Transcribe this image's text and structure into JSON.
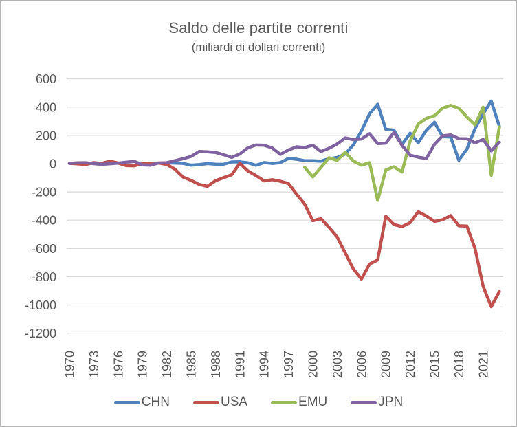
{
  "window": {
    "background": "#ffffff",
    "border_color": "#b3b3b3"
  },
  "chart_data": {
    "type": "line",
    "title": "Saldo delle partite correnti",
    "subtitle": "(miliardi di dollari correnti)",
    "text_color": "#595959",
    "grid_color": "#d9d9d9",
    "grid": "horizontal",
    "legend_position": "bottom",
    "ylim": [
      -1200,
      600
    ],
    "y_ticks": [
      600,
      400,
      200,
      0,
      -200,
      -400,
      -600,
      -800,
      -1000,
      -1200
    ],
    "x_tick_labels": [
      "1970",
      "1973",
      "1976",
      "1979",
      "1982",
      "1985",
      "1988",
      "1991",
      "1994",
      "1997",
      "2000",
      "2003",
      "2006",
      "2009",
      "2012",
      "2015",
      "2018",
      "2021"
    ],
    "x": [
      1970,
      1971,
      1972,
      1973,
      1974,
      1975,
      1976,
      1977,
      1978,
      1979,
      1980,
      1981,
      1982,
      1983,
      1984,
      1985,
      1986,
      1987,
      1988,
      1989,
      1990,
      1991,
      1992,
      1993,
      1994,
      1995,
      1996,
      1997,
      1998,
      1999,
      2000,
      2001,
      2002,
      2003,
      2004,
      2005,
      2006,
      2007,
      2008,
      2009,
      2010,
      2011,
      2012,
      2013,
      2014,
      2015,
      2016,
      2017,
      2018,
      2019,
      2020,
      2021,
      2022,
      2023
    ],
    "series": [
      {
        "name": "CHN",
        "color": "#4F81BD",
        "values": [
          null,
          null,
          null,
          null,
          null,
          null,
          null,
          null,
          null,
          null,
          null,
          null,
          5.7,
          4.2,
          2.0,
          -11.4,
          -7.0,
          0.3,
          -3.8,
          -4.3,
          12.0,
          13.3,
          6.4,
          -11.9,
          7.7,
          1.6,
          7.2,
          37.0,
          31.5,
          21.1,
          20.5,
          17.4,
          35.4,
          43.1,
          68.7,
          132.4,
          231.8,
          353.2,
          420.6,
          243.3,
          237.8,
          136.1,
          215.4,
          148.2,
          236.0,
          293.0,
          191.3,
          188.7,
          24.1,
          102.9,
          248.8,
          352.9,
          443.4,
          263.8
        ]
      },
      {
        "name": "USA",
        "color": "#C0504D",
        "values": [
          2.3,
          -1.4,
          -5.8,
          7.1,
          2.0,
          18.1,
          4.3,
          -14.3,
          -15.1,
          -0.3,
          2.3,
          5.0,
          -5.5,
          -38.7,
          -94.3,
          -118.2,
          -147.2,
          -160.7,
          -121.2,
          -99.5,
          -79.0,
          2.9,
          -51.6,
          -84.8,
          -121.6,
          -113.6,
          -124.8,
          -140.7,
          -215.0,
          -286.6,
          -403.5,
          -389.7,
          -450.8,
          -518.7,
          -631.6,
          -745.2,
          -816.6,
          -711.0,
          -681.4,
          -372.5,
          -431.3,
          -445.7,
          -418.1,
          -339.5,
          -370.1,
          -408.5,
          -397.0,
          -367.4,
          -439.9,
          -441.8,
          -601.2,
          -868.0,
          -1012.1,
          -905.4
        ]
      },
      {
        "name": "EMU",
        "color": "#9BBB59",
        "values": [
          null,
          null,
          null,
          null,
          null,
          null,
          null,
          null,
          null,
          null,
          null,
          null,
          null,
          null,
          null,
          null,
          null,
          null,
          null,
          null,
          null,
          null,
          null,
          null,
          null,
          null,
          null,
          null,
          null,
          -26.0,
          -93.5,
          -26.6,
          42.0,
          23.0,
          81.0,
          19.0,
          -10.0,
          7.0,
          -260.0,
          -45.0,
          -22.0,
          -59.0,
          160.0,
          281.0,
          321.0,
          339.0,
          393.0,
          412.0,
          392.0,
          330.0,
          275.0,
          400.0,
          -82.7,
          259.7
        ]
      },
      {
        "name": "JPN",
        "color": "#8064A2",
        "values": [
          2.0,
          5.8,
          6.6,
          -0.1,
          -4.7,
          -0.7,
          3.7,
          10.9,
          16.5,
          -8.7,
          -10.7,
          4.8,
          6.9,
          20.8,
          35.0,
          51.1,
          85.9,
          84.4,
          79.2,
          63.2,
          44.1,
          68.2,
          112.6,
          131.9,
          130.3,
          111.4,
          65.7,
          96.6,
          119.1,
          114.5,
          130.7,
          86.2,
          109.1,
          139.4,
          182.0,
          170.1,
          174.5,
          212.1,
          142.6,
          145.3,
          221.0,
          129.8,
          59.7,
          45.9,
          36.4,
          136.4,
          197.1,
          203.5,
          177.3,
          176.3,
          147.9,
          170.9,
          90.7,
          150.7
        ]
      }
    ]
  }
}
